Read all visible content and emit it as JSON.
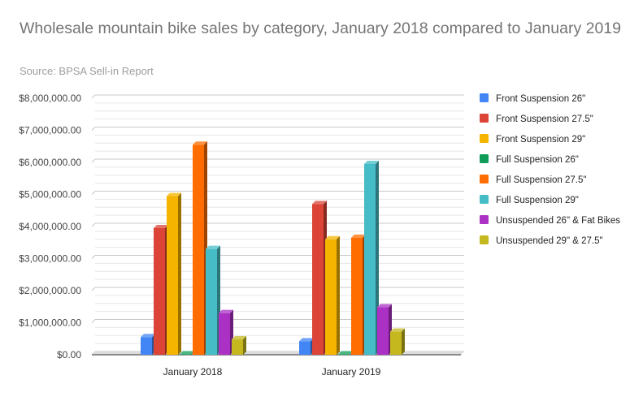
{
  "chart_data": {
    "type": "bar",
    "style": "3d-clustered",
    "title": "Wholesale mountain bike sales by category, January 2018 compared to January 2019",
    "subtitle": "Source: BPSA Sell-in Report",
    "xlabel": "",
    "ylabel": "",
    "ylim": [
      0,
      8000000
    ],
    "y_tick_labels": [
      "$0.00",
      "$1,000,000.00",
      "$2,000,000.00",
      "$3,000,000.00",
      "$4,000,000.00",
      "$5,000,000.00",
      "$6,000,000.00",
      "$7,000,000.00",
      "$8,000,000.00"
    ],
    "categories": [
      "January 2018",
      "January 2019"
    ],
    "legend_position": "right",
    "grid": true,
    "series": [
      {
        "name": "Front Suspension 26\"",
        "color": "#4285f4",
        "values": [
          550000,
          420000
        ]
      },
      {
        "name": "Front Suspension 27.5\"",
        "color": "#db4437",
        "values": [
          3950000,
          4700000
        ]
      },
      {
        "name": "Front Suspension 29\"",
        "color": "#f4b400",
        "values": [
          4950000,
          3600000
        ]
      },
      {
        "name": "Full Suspension 26\"",
        "color": "#0f9d58",
        "values": [
          15000,
          15000
        ]
      },
      {
        "name": "Full Suspension 27.5\"",
        "color": "#ff6d00",
        "values": [
          6550000,
          3650000
        ]
      },
      {
        "name": "Full Suspension 29\"",
        "color": "#46bdc6",
        "values": [
          3300000,
          5950000
        ]
      },
      {
        "name": "Unsuspended 26\" & Fat Bikes",
        "color": "#ab30c4",
        "values": [
          1300000,
          1480000
        ]
      },
      {
        "name": "Unsuspended 29\" & 27.5\"",
        "color": "#c5b81f",
        "values": [
          480000,
          720000
        ]
      }
    ]
  }
}
